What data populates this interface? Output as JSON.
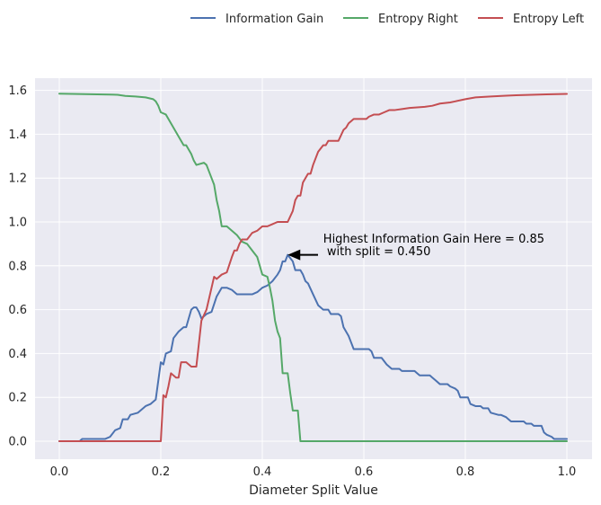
{
  "chart_data": {
    "type": "line",
    "title": "",
    "xlabel": "Diameter Split Value",
    "ylabel": "",
    "xlim": [
      -0.05,
      1.05
    ],
    "ylim": [
      -0.08,
      1.66
    ],
    "grid": true,
    "legend_position": "top-right",
    "x_ticks": [
      "0.0",
      "0.2",
      "0.4",
      "0.6",
      "0.8",
      "1.0"
    ],
    "y_ticks": [
      "0.0",
      "0.2",
      "0.4",
      "0.6",
      "0.8",
      "1.0",
      "1.2",
      "1.4",
      "1.6"
    ],
    "series": [
      {
        "name": "Information Gain",
        "color": "#4c72b0",
        "points": [
          [
            0,
            0
          ],
          [
            0.04,
            0
          ],
          [
            0.045,
            0.01
          ],
          [
            0.09,
            0.01
          ],
          [
            0.1,
            0.02
          ],
          [
            0.11,
            0.05
          ],
          [
            0.12,
            0.06
          ],
          [
            0.125,
            0.1
          ],
          [
            0.135,
            0.1
          ],
          [
            0.14,
            0.12
          ],
          [
            0.155,
            0.13
          ],
          [
            0.17,
            0.16
          ],
          [
            0.18,
            0.17
          ],
          [
            0.19,
            0.19
          ],
          [
            0.2,
            0.36
          ],
          [
            0.205,
            0.35
          ],
          [
            0.21,
            0.4
          ],
          [
            0.22,
            0.41
          ],
          [
            0.225,
            0.47
          ],
          [
            0.235,
            0.5
          ],
          [
            0.245,
            0.52
          ],
          [
            0.25,
            0.52
          ],
          [
            0.255,
            0.56
          ],
          [
            0.26,
            0.6
          ],
          [
            0.265,
            0.61
          ],
          [
            0.27,
            0.61
          ],
          [
            0.275,
            0.59
          ],
          [
            0.28,
            0.56
          ],
          [
            0.29,
            0.58
          ],
          [
            0.3,
            0.59
          ],
          [
            0.31,
            0.66
          ],
          [
            0.32,
            0.7
          ],
          [
            0.33,
            0.7
          ],
          [
            0.34,
            0.69
          ],
          [
            0.35,
            0.67
          ],
          [
            0.37,
            0.67
          ],
          [
            0.38,
            0.67
          ],
          [
            0.39,
            0.68
          ],
          [
            0.4,
            0.7
          ],
          [
            0.41,
            0.71
          ],
          [
            0.42,
            0.73
          ],
          [
            0.43,
            0.76
          ],
          [
            0.435,
            0.78
          ],
          [
            0.44,
            0.82
          ],
          [
            0.445,
            0.82
          ],
          [
            0.45,
            0.85
          ],
          [
            0.46,
            0.82
          ],
          [
            0.465,
            0.78
          ],
          [
            0.475,
            0.78
          ],
          [
            0.48,
            0.76
          ],
          [
            0.485,
            0.73
          ],
          [
            0.49,
            0.72
          ],
          [
            0.5,
            0.67
          ],
          [
            0.51,
            0.62
          ],
          [
            0.52,
            0.6
          ],
          [
            0.53,
            0.6
          ],
          [
            0.535,
            0.58
          ],
          [
            0.55,
            0.58
          ],
          [
            0.555,
            0.57
          ],
          [
            0.56,
            0.52
          ],
          [
            0.57,
            0.48
          ],
          [
            0.575,
            0.45
          ],
          [
            0.58,
            0.42
          ],
          [
            0.6,
            0.42
          ],
          [
            0.61,
            0.42
          ],
          [
            0.615,
            0.41
          ],
          [
            0.62,
            0.38
          ],
          [
            0.635,
            0.38
          ],
          [
            0.645,
            0.35
          ],
          [
            0.655,
            0.33
          ],
          [
            0.67,
            0.33
          ],
          [
            0.675,
            0.32
          ],
          [
            0.69,
            0.32
          ],
          [
            0.7,
            0.32
          ],
          [
            0.705,
            0.31
          ],
          [
            0.71,
            0.3
          ],
          [
            0.73,
            0.3
          ],
          [
            0.735,
            0.29
          ],
          [
            0.74,
            0.28
          ],
          [
            0.75,
            0.26
          ],
          [
            0.765,
            0.26
          ],
          [
            0.77,
            0.25
          ],
          [
            0.78,
            0.24
          ],
          [
            0.785,
            0.23
          ],
          [
            0.79,
            0.2
          ],
          [
            0.8,
            0.2
          ],
          [
            0.805,
            0.2
          ],
          [
            0.81,
            0.17
          ],
          [
            0.82,
            0.16
          ],
          [
            0.83,
            0.16
          ],
          [
            0.835,
            0.15
          ],
          [
            0.845,
            0.15
          ],
          [
            0.85,
            0.13
          ],
          [
            0.865,
            0.12
          ],
          [
            0.87,
            0.12
          ],
          [
            0.88,
            0.11
          ],
          [
            0.885,
            0.1
          ],
          [
            0.89,
            0.09
          ],
          [
            0.9,
            0.09
          ],
          [
            0.915,
            0.09
          ],
          [
            0.92,
            0.08
          ],
          [
            0.93,
            0.08
          ],
          [
            0.935,
            0.07
          ],
          [
            0.95,
            0.07
          ],
          [
            0.955,
            0.04
          ],
          [
            0.96,
            0.03
          ],
          [
            0.97,
            0.02
          ],
          [
            0.975,
            0.01
          ],
          [
            1.0,
            0.01
          ]
        ]
      },
      {
        "name": "Entropy Right",
        "color": "#55a868",
        "points": [
          [
            0,
            1.585
          ],
          [
            0.05,
            1.583
          ],
          [
            0.1,
            1.581
          ],
          [
            0.115,
            1.58
          ],
          [
            0.13,
            1.575
          ],
          [
            0.15,
            1.572
          ],
          [
            0.17,
            1.568
          ],
          [
            0.185,
            1.56
          ],
          [
            0.19,
            1.55
          ],
          [
            0.195,
            1.53
          ],
          [
            0.2,
            1.5
          ],
          [
            0.21,
            1.49
          ],
          [
            0.22,
            1.45
          ],
          [
            0.23,
            1.41
          ],
          [
            0.24,
            1.37
          ],
          [
            0.245,
            1.35
          ],
          [
            0.25,
            1.35
          ],
          [
            0.26,
            1.31
          ],
          [
            0.265,
            1.28
          ],
          [
            0.27,
            1.26
          ],
          [
            0.285,
            1.27
          ],
          [
            0.29,
            1.26
          ],
          [
            0.3,
            1.2
          ],
          [
            0.305,
            1.17
          ],
          [
            0.31,
            1.1
          ],
          [
            0.315,
            1.05
          ],
          [
            0.32,
            0.98
          ],
          [
            0.33,
            0.98
          ],
          [
            0.34,
            0.96
          ],
          [
            0.35,
            0.94
          ],
          [
            0.36,
            0.91
          ],
          [
            0.37,
            0.9
          ],
          [
            0.38,
            0.87
          ],
          [
            0.39,
            0.84
          ],
          [
            0.395,
            0.8
          ],
          [
            0.4,
            0.76
          ],
          [
            0.41,
            0.75
          ],
          [
            0.415,
            0.7
          ],
          [
            0.42,
            0.64
          ],
          [
            0.425,
            0.55
          ],
          [
            0.43,
            0.5
          ],
          [
            0.435,
            0.47
          ],
          [
            0.44,
            0.31
          ],
          [
            0.45,
            0.31
          ],
          [
            0.455,
            0.22
          ],
          [
            0.46,
            0.14
          ],
          [
            0.47,
            0.14
          ],
          [
            0.475,
            0.0
          ],
          [
            1.0,
            0.0
          ]
        ]
      },
      {
        "name": "Entropy Left",
        "color": "#c44e52",
        "points": [
          [
            0,
            0
          ],
          [
            0.05,
            0
          ],
          [
            0.1,
            0
          ],
          [
            0.15,
            0
          ],
          [
            0.2,
            0
          ],
          [
            0.205,
            0.21
          ],
          [
            0.21,
            0.2
          ],
          [
            0.215,
            0.25
          ],
          [
            0.22,
            0.31
          ],
          [
            0.23,
            0.29
          ],
          [
            0.235,
            0.29
          ],
          [
            0.24,
            0.36
          ],
          [
            0.25,
            0.36
          ],
          [
            0.26,
            0.34
          ],
          [
            0.27,
            0.34
          ],
          [
            0.28,
            0.55
          ],
          [
            0.29,
            0.6
          ],
          [
            0.3,
            0.7
          ],
          [
            0.305,
            0.75
          ],
          [
            0.31,
            0.74
          ],
          [
            0.32,
            0.76
          ],
          [
            0.33,
            0.77
          ],
          [
            0.34,
            0.84
          ],
          [
            0.345,
            0.87
          ],
          [
            0.35,
            0.87
          ],
          [
            0.355,
            0.9
          ],
          [
            0.36,
            0.92
          ],
          [
            0.37,
            0.92
          ],
          [
            0.38,
            0.95
          ],
          [
            0.39,
            0.96
          ],
          [
            0.4,
            0.98
          ],
          [
            0.41,
            0.98
          ],
          [
            0.42,
            0.99
          ],
          [
            0.43,
            1.0
          ],
          [
            0.45,
            1.0
          ],
          [
            0.46,
            1.05
          ],
          [
            0.465,
            1.1
          ],
          [
            0.47,
            1.12
          ],
          [
            0.475,
            1.12
          ],
          [
            0.48,
            1.18
          ],
          [
            0.49,
            1.22
          ],
          [
            0.495,
            1.22
          ],
          [
            0.5,
            1.26
          ],
          [
            0.51,
            1.32
          ],
          [
            0.52,
            1.35
          ],
          [
            0.525,
            1.35
          ],
          [
            0.53,
            1.37
          ],
          [
            0.545,
            1.37
          ],
          [
            0.55,
            1.37
          ],
          [
            0.56,
            1.42
          ],
          [
            0.565,
            1.43
          ],
          [
            0.57,
            1.45
          ],
          [
            0.58,
            1.47
          ],
          [
            0.6,
            1.47
          ],
          [
            0.605,
            1.47
          ],
          [
            0.61,
            1.48
          ],
          [
            0.62,
            1.49
          ],
          [
            0.63,
            1.49
          ],
          [
            0.64,
            1.5
          ],
          [
            0.65,
            1.51
          ],
          [
            0.66,
            1.51
          ],
          [
            0.675,
            1.515
          ],
          [
            0.69,
            1.52
          ],
          [
            0.72,
            1.525
          ],
          [
            0.735,
            1.53
          ],
          [
            0.75,
            1.54
          ],
          [
            0.77,
            1.545
          ],
          [
            0.78,
            1.55
          ],
          [
            0.8,
            1.56
          ],
          [
            0.82,
            1.568
          ],
          [
            0.85,
            1.572
          ],
          [
            0.88,
            1.576
          ],
          [
            0.9,
            1.578
          ],
          [
            0.93,
            1.58
          ],
          [
            0.96,
            1.582
          ],
          [
            1.0,
            1.584
          ]
        ]
      }
    ],
    "annotation": {
      "lines": [
        "Highest Information Gain Here = 0.85",
        " with split = 0.450"
      ],
      "point": [
        0.45,
        0.85
      ],
      "text_anchor": [
        0.52,
        0.88
      ]
    }
  }
}
